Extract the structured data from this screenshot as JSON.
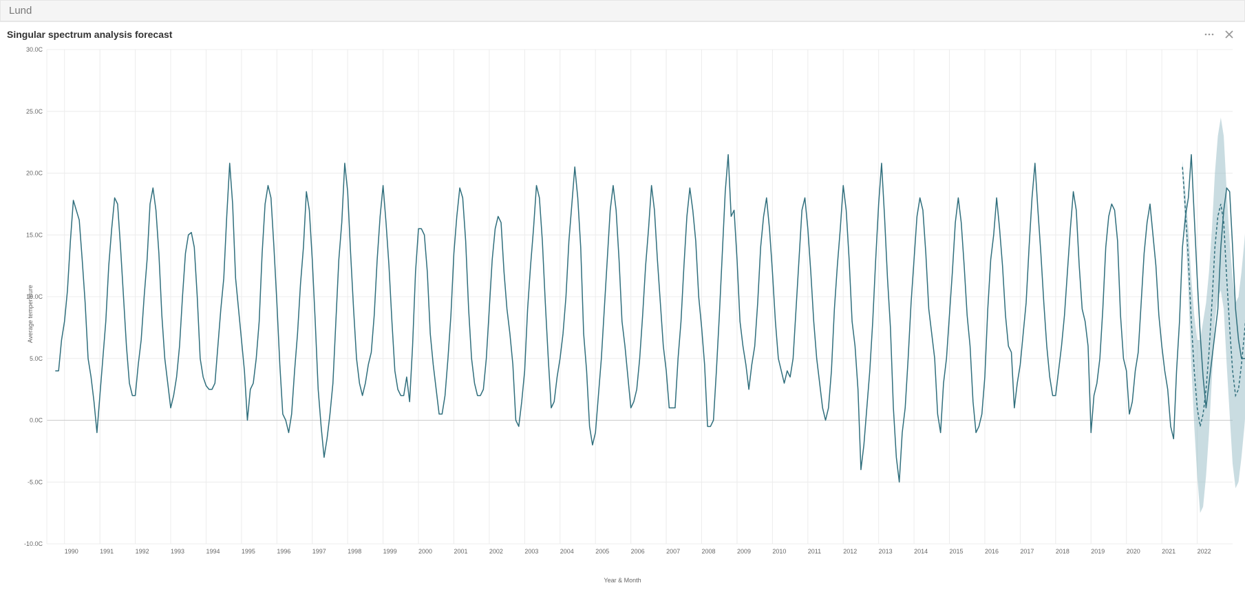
{
  "header": {
    "title": "Lund"
  },
  "chart": {
    "title": "Singular spectrum analysis forecast",
    "type": "line",
    "xlabel": "Year & Month",
    "ylabel": "Average temperature",
    "ylim": [
      -10,
      30
    ],
    "ytick_step": 5,
    "ytick_suffix": ".0C",
    "xlim_years": [
      1989.5,
      2023.0
    ],
    "xtick_years": [
      1990,
      1991,
      1992,
      1993,
      1994,
      1995,
      1996,
      1997,
      1998,
      1999,
      2000,
      2001,
      2002,
      2003,
      2004,
      2005,
      2006,
      2007,
      2008,
      2009,
      2010,
      2011,
      2012,
      2013,
      2014,
      2015,
      2016,
      2017,
      2018,
      2019,
      2020,
      2021,
      2022
    ],
    "colors": {
      "line": "#2f6e7c",
      "forecast_line": "#2f6e7c",
      "forecast_band": "#9dbfc9",
      "grid": "#ececec",
      "zero": "#cccccc",
      "background": "#ffffff",
      "tick_text": "#666666"
    },
    "line_width": 1.5,
    "forecast_dash": "4 3",
    "band_opacity": 0.55,
    "tick_fontsize": 9,
    "label_fontsize": 9,
    "title_fontsize": 14,
    "historical": {
      "start_year": 1989.75,
      "step_years": 0.083333,
      "values": [
        4.0,
        4.0,
        6.5,
        8.0,
        10.5,
        14.5,
        17.8,
        17.0,
        16.2,
        13.0,
        9.5,
        5.0,
        3.5,
        1.5,
        -1.0,
        2.0,
        5.0,
        8.0,
        12.5,
        15.5,
        18.0,
        17.5,
        14.0,
        10.0,
        6.0,
        3.0,
        2.0,
        2.0,
        4.5,
        6.5,
        10.0,
        13.0,
        17.5,
        18.8,
        17.0,
        13.5,
        8.5,
        5.0,
        3.0,
        1.0,
        2.0,
        3.5,
        6.0,
        10.0,
        13.5,
        15.0,
        15.2,
        14.0,
        10.0,
        5.0,
        3.5,
        2.8,
        2.5,
        2.5,
        3.0,
        6.0,
        9.0,
        11.5,
        16.5,
        20.8,
        17.5,
        11.5,
        9.0,
        6.5,
        4.0,
        0.0,
        2.5,
        3.0,
        5.0,
        8.0,
        13.5,
        17.5,
        19.0,
        18.0,
        14.0,
        9.5,
        4.5,
        0.5,
        0.0,
        -1.0,
        0.5,
        4.0,
        7.0,
        11.0,
        14.0,
        18.5,
        17.0,
        13.0,
        8.0,
        2.5,
        -0.5,
        -3.0,
        -1.5,
        0.5,
        3.0,
        8.0,
        13.0,
        16.0,
        20.8,
        18.5,
        13.5,
        9.0,
        5.0,
        3.0,
        2.0,
        3.0,
        4.5,
        5.5,
        8.5,
        13.0,
        16.5,
        19.0,
        16.0,
        12.5,
        8.0,
        4.0,
        2.5,
        2.0,
        2.0,
        3.5,
        1.5,
        6.0,
        12.0,
        15.5,
        15.5,
        15.0,
        12.0,
        7.0,
        4.5,
        2.5,
        0.5,
        0.5,
        2.0,
        5.0,
        8.5,
        13.5,
        16.5,
        18.8,
        18.0,
        14.5,
        9.0,
        5.0,
        3.0,
        2.0,
        2.0,
        2.5,
        5.0,
        9.0,
        13.0,
        15.5,
        16.5,
        16.0,
        12.0,
        9.0,
        7.0,
        4.5,
        0.0,
        -0.5,
        1.5,
        4.0,
        9.0,
        12.5,
        15.5,
        19.0,
        18.0,
        14.5,
        9.5,
        5.0,
        1.0,
        1.5,
        3.5,
        5.0,
        7.0,
        10.0,
        14.5,
        17.5,
        20.5,
        18.0,
        14.0,
        7.0,
        4.0,
        -0.5,
        -2.0,
        -1.0,
        2.0,
        5.0,
        9.0,
        13.0,
        17.0,
        19.0,
        17.0,
        13.0,
        8.0,
        6.0,
        3.5,
        1.0,
        1.5,
        2.5,
        5.0,
        8.5,
        12.5,
        15.5,
        19.0,
        17.0,
        13.0,
        9.5,
        6.0,
        4.0,
        1.0,
        1.0,
        1.0,
        5.0,
        8.0,
        12.5,
        16.5,
        18.8,
        17.0,
        14.5,
        10.0,
        7.5,
        4.5,
        -0.5,
        -0.5,
        0.0,
        4.0,
        8.5,
        13.5,
        18.5,
        21.5,
        16.5,
        17.0,
        13.0,
        8.0,
        6.0,
        4.5,
        2.5,
        4.5,
        6.0,
        9.5,
        14.0,
        16.5,
        18.0,
        15.5,
        12.0,
        8.0,
        5.0,
        4.0,
        3.0,
        4.0,
        3.5,
        5.0,
        9.0,
        13.0,
        17.0,
        18.0,
        15.5,
        12.0,
        8.0,
        5.0,
        3.0,
        1.0,
        0.0,
        1.0,
        4.0,
        9.0,
        12.5,
        15.5,
        19.0,
        17.0,
        13.0,
        8.0,
        6.0,
        2.5,
        -4.0,
        -2.0,
        1.0,
        4.0,
        8.0,
        13.0,
        17.5,
        20.8,
        16.5,
        11.5,
        7.5,
        1.0,
        -3.0,
        -5.0,
        -1.0,
        1.0,
        5.0,
        9.5,
        13.0,
        16.5,
        18.0,
        17.0,
        13.5,
        9.0,
        7.0,
        5.0,
        0.5,
        -1.0,
        3.0,
        5.0,
        8.5,
        12.0,
        16.0,
        18.0,
        16.0,
        12.5,
        8.5,
        6.0,
        1.5,
        -1.0,
        -0.5,
        0.5,
        3.5,
        9.0,
        13.0,
        15.0,
        18.0,
        15.5,
        12.5,
        8.5,
        6.0,
        5.5,
        1.0,
        3.0,
        4.5,
        7.0,
        9.5,
        14.0,
        18.0,
        20.8,
        17.0,
        13.5,
        9.5,
        6.0,
        3.5,
        2.0,
        2.0,
        4.0,
        6.0,
        8.5,
        12.0,
        15.5,
        18.5,
        17.0,
        12.5,
        9.0,
        8.0,
        6.0,
        -1.0,
        2.0,
        3.0,
        5.0,
        9.0,
        14.0,
        16.5,
        17.5,
        17.0,
        14.5,
        8.5,
        5.0,
        4.0,
        0.5,
        1.5,
        4.0,
        5.5,
        9.5,
        13.5,
        16.0,
        17.5,
        15.0,
        12.5,
        8.5,
        6.0,
        4.0,
        2.5,
        -0.5,
        -1.5,
        4.0,
        8.0,
        14.0,
        16.5,
        18.0,
        21.5,
        16.5,
        11.5,
        7.0,
        3.5,
        1.0,
        3.0,
        5.0,
        7.0,
        9.0,
        14.0,
        17.0,
        18.8,
        18.5,
        14.0,
        9.0,
        6.5,
        5.0,
        5.0,
        5.0,
        4.5,
        6.0,
        8.5,
        14.0,
        18.5,
        20.0,
        19.0,
        18.8,
        14.5,
        9.5,
        7.5,
        5.5,
        0.5,
        -0.5,
        2.0,
        5.0,
        8.0,
        13.5,
        18.0,
        20.5
      ]
    },
    "forecast": {
      "start_year": 2021.583,
      "step_years": 0.083333,
      "values": [
        20.5,
        17.0,
        13.0,
        8.0,
        4.0,
        1.0,
        -0.5,
        0.5,
        2.5,
        5.5,
        9.5,
        14.0,
        16.5,
        17.5,
        16.0,
        11.5,
        7.5,
        4.0,
        2.0,
        2.5,
        4.5,
        7.0,
        10.0,
        14.0,
        16.5,
        17.5
      ],
      "band_halfwidth": [
        0.5,
        1.5,
        2.5,
        3.5,
        4.5,
        5.5,
        7.0,
        7.5,
        7.0,
        6.5,
        6.0,
        6.0,
        6.5,
        7.0,
        7.0,
        7.0,
        7.0,
        7.5,
        7.5,
        7.5,
        7.5,
        7.5,
        7.5,
        7.8,
        8.0,
        8.2
      ]
    }
  },
  "actions": {
    "more_tooltip": "More options",
    "close_tooltip": "Close"
  }
}
